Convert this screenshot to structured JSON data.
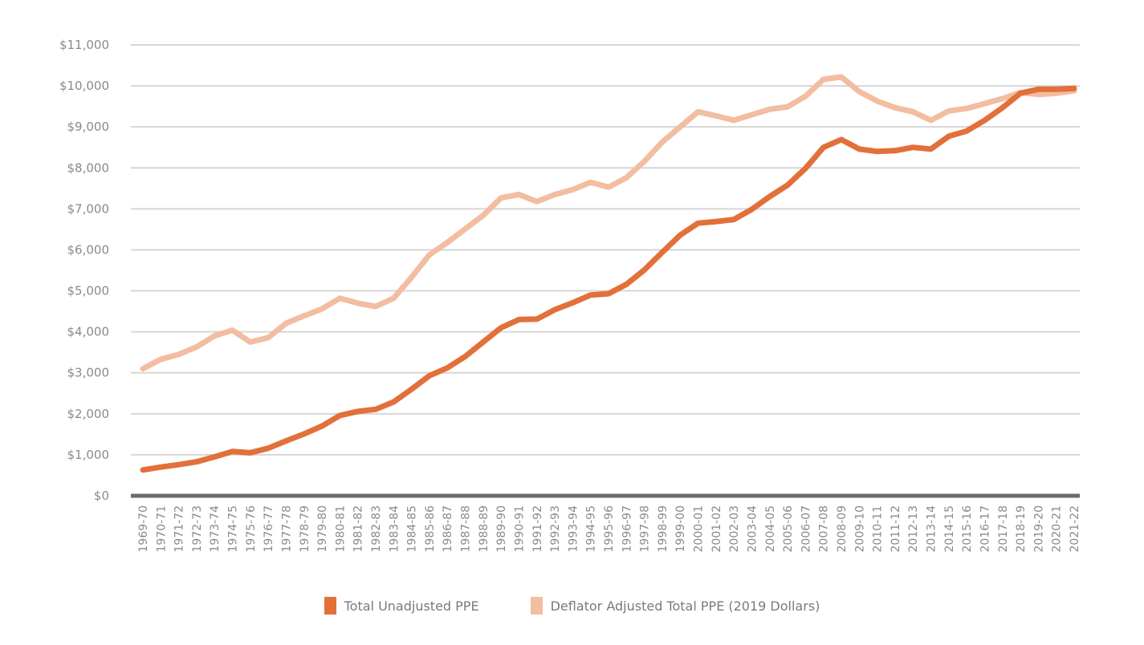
{
  "chart_data": {
    "type": "line",
    "title": "",
    "xlabel": "",
    "ylabel": "",
    "ylim": [
      0,
      11000
    ],
    "grid": true,
    "legend_position": "bottom",
    "y_ticks": [
      {
        "value": 0,
        "label": "$0"
      },
      {
        "value": 1000,
        "label": "$1,000"
      },
      {
        "value": 2000,
        "label": "$2,000"
      },
      {
        "value": 3000,
        "label": "$3,000"
      },
      {
        "value": 4000,
        "label": "$4,000"
      },
      {
        "value": 5000,
        "label": "$5,000"
      },
      {
        "value": 6000,
        "label": "$6,000"
      },
      {
        "value": 7000,
        "label": "$7,000"
      },
      {
        "value": 8000,
        "label": "$8,000"
      },
      {
        "value": 9000,
        "label": "$9,000"
      },
      {
        "value": 10000,
        "label": "$10,000"
      },
      {
        "value": 11000,
        "label": "$11,000"
      }
    ],
    "categories": [
      "1969-70",
      "1970-71",
      "1971-72",
      "1972-73",
      "1973-74",
      "1974-75",
      "1975-76",
      "1976-77",
      "1977-78",
      "1978-79",
      "1979-80",
      "1980-81",
      "1981-82",
      "1982-83",
      "1983-84",
      "1984-85",
      "1985-86",
      "1986-87",
      "1987-88",
      "1988-89",
      "1989-90",
      "1990-91",
      "1991-92",
      "1992-93",
      "1993-94",
      "1994-95",
      "1995-96",
      "1996-97",
      "1997-98",
      "1998-99",
      "1999-00",
      "2000-01",
      "2001-02",
      "2002-03",
      "2003-04",
      "2004-05",
      "2005-06",
      "2006-07",
      "2007-08",
      "2008-09",
      "2009-10",
      "2010-11",
      "2011-12",
      "2012-13",
      "2013-14",
      "2014-15",
      "2015-16",
      "2016-17",
      "2017-18",
      "2018-19",
      "2019-20",
      "2020-21",
      "2021-22"
    ],
    "series": [
      {
        "name": "Total Unadjusted PPE",
        "color": "#e2703a",
        "values": [
          630,
          700,
          760,
          830,
          950,
          1080,
          1050,
          1160,
          1340,
          1510,
          1700,
          1960,
          2060,
          2110,
          2290,
          2600,
          2930,
          3120,
          3400,
          3750,
          4100,
          4300,
          4310,
          4540,
          4710,
          4900,
          4930,
          5160,
          5510,
          5940,
          6360,
          6650,
          6690,
          6740,
          6990,
          7300,
          7580,
          7990,
          8500,
          8690,
          8460,
          8400,
          8420,
          8500,
          8460,
          8770,
          8900,
          9160,
          9470,
          9820,
          9920,
          9920,
          9940
        ]
      },
      {
        "name": "Deflator Adjusted Total PPE (2019 Dollars)",
        "color": "#f2bda0",
        "values": [
          3100,
          3330,
          3450,
          3630,
          3900,
          4040,
          3750,
          3860,
          4210,
          4390,
          4560,
          4820,
          4700,
          4620,
          4820,
          5330,
          5880,
          6180,
          6510,
          6840,
          7270,
          7350,
          7180,
          7350,
          7470,
          7650,
          7530,
          7760,
          8160,
          8630,
          9000,
          9370,
          9270,
          9160,
          9300,
          9430,
          9490,
          9750,
          10160,
          10220,
          9860,
          9630,
          9470,
          9370,
          9160,
          9390,
          9450,
          9570,
          9690,
          9840,
          9790,
          9820,
          9880
        ]
      }
    ]
  }
}
